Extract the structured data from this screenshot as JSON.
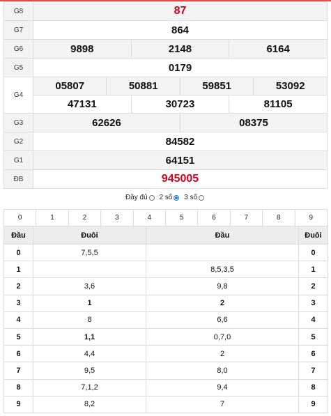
{
  "prizes": [
    {
      "label": "G8",
      "numbers": [
        "87"
      ]
    },
    {
      "label": "G7",
      "numbers": [
        "864"
      ]
    },
    {
      "label": "G6",
      "numbers": [
        "9898",
        "2148",
        "6164"
      ]
    },
    {
      "label": "G5",
      "numbers": [
        "0179"
      ]
    },
    {
      "label": "G4",
      "numbers": [
        "05807",
        "50881",
        "59851",
        "53092",
        "47131",
        "30723",
        "81105"
      ]
    },
    {
      "label": "G3",
      "numbers": [
        "62626",
        "08375"
      ]
    },
    {
      "label": "G2",
      "numbers": [
        "84582"
      ]
    },
    {
      "label": "G1",
      "numbers": [
        "64151"
      ]
    },
    {
      "label": "ĐB",
      "numbers": [
        "945005"
      ]
    }
  ],
  "colors": {
    "highlight": "#d0021b",
    "radio_selected": "#1a73e8"
  },
  "filter": {
    "options": [
      "Đầy đủ",
      "2 số",
      "3 số"
    ],
    "selected": "2 số"
  },
  "digits": [
    "0",
    "1",
    "2",
    "3",
    "4",
    "5",
    "6",
    "7",
    "8",
    "9"
  ],
  "loto": {
    "headers": [
      "Đầu",
      "Đuôi",
      "Đầu",
      "Đuôi"
    ],
    "rows": [
      {
        "head": "0",
        "tails": "7,5,5",
        "heads": "",
        "tail": "0"
      },
      {
        "head": "1",
        "tails": "",
        "heads": "8,5,3,5",
        "tail": "1"
      },
      {
        "head": "2",
        "tails": "3,6",
        "heads": "9,8",
        "tail": "2"
      },
      {
        "head": "3",
        "tails": "1",
        "heads": "2",
        "tail": "3"
      },
      {
        "head": "4",
        "tails": "8",
        "heads": "6,6",
        "tail": "4"
      },
      {
        "head": "5",
        "tails": "1,1",
        "heads": "0,7,0",
        "tail": "5"
      },
      {
        "head": "6",
        "tails": "4,4",
        "heads": "2",
        "tail": "6"
      },
      {
        "head": "7",
        "tails": "9,5",
        "heads": "8,0",
        "tail": "7"
      },
      {
        "head": "8",
        "tails": "7,1,2",
        "heads": "9,4",
        "tail": "8"
      },
      {
        "head": "9",
        "tails": "8,2",
        "heads": "7",
        "tail": "9"
      }
    ]
  }
}
